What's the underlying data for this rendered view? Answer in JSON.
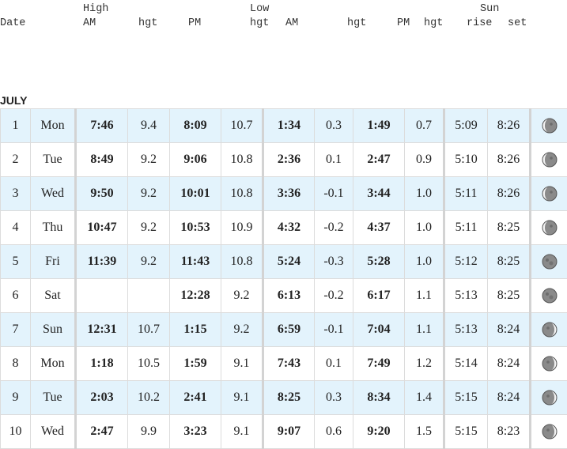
{
  "header": {
    "date": "Date",
    "high": "High",
    "low": "Low",
    "sun": "Sun",
    "am": "AM",
    "pm": "PM",
    "hgt": "hgt",
    "rise": "rise",
    "set": "set"
  },
  "month": "JULY",
  "rows": [
    {
      "day": "1",
      "dow": "Mon",
      "hi_am": "7:46",
      "hi_am_h": "9.4",
      "hi_pm": "8:09",
      "hi_pm_h": "10.7",
      "lo_am": "1:34",
      "lo_am_h": "0.3",
      "lo_pm": "1:49",
      "lo_pm_h": "0.7",
      "rise": "5:09",
      "set": "8:26",
      "moon": "waxing-gibbous-icon"
    },
    {
      "day": "2",
      "dow": "Tue",
      "hi_am": "8:49",
      "hi_am_h": "9.2",
      "hi_pm": "9:06",
      "hi_pm_h": "10.8",
      "lo_am": "2:36",
      "lo_am_h": "0.1",
      "lo_pm": "2:47",
      "lo_pm_h": "0.9",
      "rise": "5:10",
      "set": "8:26",
      "moon": "waxing-gibbous-icon"
    },
    {
      "day": "3",
      "dow": "Wed",
      "hi_am": "9:50",
      "hi_am_h": "9.2",
      "hi_pm": "10:01",
      "hi_pm_h": "10.8",
      "lo_am": "3:36",
      "lo_am_h": "-0.1",
      "lo_pm": "3:44",
      "lo_pm_h": "1.0",
      "rise": "5:11",
      "set": "8:26",
      "moon": "waxing-gibbous-icon"
    },
    {
      "day": "4",
      "dow": "Thu",
      "hi_am": "10:47",
      "hi_am_h": "9.2",
      "hi_pm": "10:53",
      "hi_pm_h": "10.9",
      "lo_am": "4:32",
      "lo_am_h": "-0.2",
      "lo_pm": "4:37",
      "lo_pm_h": "1.0",
      "rise": "5:11",
      "set": "8:25",
      "moon": "waxing-gibbous-icon"
    },
    {
      "day": "5",
      "dow": "Fri",
      "hi_am": "11:39",
      "hi_am_h": "9.2",
      "hi_pm": "11:43",
      "hi_pm_h": "10.8",
      "lo_am": "5:24",
      "lo_am_h": "-0.3",
      "lo_pm": "5:28",
      "lo_pm_h": "1.0",
      "rise": "5:12",
      "set": "8:25",
      "moon": "full-moon-icon"
    },
    {
      "day": "6",
      "dow": "Sat",
      "hi_am": "",
      "hi_am_h": "",
      "hi_pm": "12:28",
      "hi_pm_h": "9.2",
      "lo_am": "6:13",
      "lo_am_h": "-0.2",
      "lo_pm": "6:17",
      "lo_pm_h": "1.1",
      "rise": "5:13",
      "set": "8:25",
      "moon": "full-moon-icon"
    },
    {
      "day": "7",
      "dow": "Sun",
      "hi_am": "12:31",
      "hi_am_h": "10.7",
      "hi_pm": "1:15",
      "hi_pm_h": "9.2",
      "lo_am": "6:59",
      "lo_am_h": "-0.1",
      "lo_pm": "7:04",
      "lo_pm_h": "1.1",
      "rise": "5:13",
      "set": "8:24",
      "moon": "waning-gibbous-icon"
    },
    {
      "day": "8",
      "dow": "Mon",
      "hi_am": "1:18",
      "hi_am_h": "10.5",
      "hi_pm": "1:59",
      "hi_pm_h": "9.1",
      "lo_am": "7:43",
      "lo_am_h": "0.1",
      "lo_pm": "7:49",
      "lo_pm_h": "1.2",
      "rise": "5:14",
      "set": "8:24",
      "moon": "waning-gibbous-icon"
    },
    {
      "day": "9",
      "dow": "Tue",
      "hi_am": "2:03",
      "hi_am_h": "10.2",
      "hi_pm": "2:41",
      "hi_pm_h": "9.1",
      "lo_am": "8:25",
      "lo_am_h": "0.3",
      "lo_pm": "8:34",
      "lo_pm_h": "1.4",
      "rise": "5:15",
      "set": "8:24",
      "moon": "waning-gibbous-icon"
    },
    {
      "day": "10",
      "dow": "Wed",
      "hi_am": "2:47",
      "hi_am_h": "9.9",
      "hi_pm": "3:23",
      "hi_pm_h": "9.1",
      "lo_am": "9:07",
      "lo_am_h": "0.6",
      "lo_pm": "9:20",
      "lo_pm_h": "1.5",
      "rise": "5:15",
      "set": "8:23",
      "moon": "waning-gibbous-icon"
    }
  ]
}
